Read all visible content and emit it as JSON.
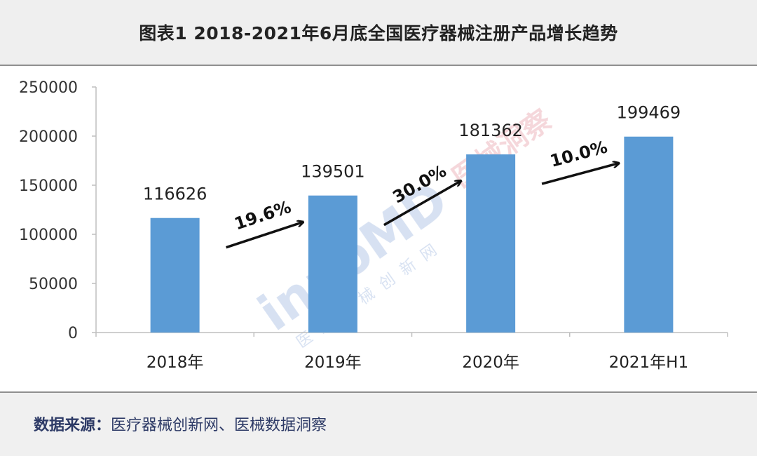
{
  "header": {
    "title": "图表1  2018-2021年6月底全国医疗器械注册产品增长趋势"
  },
  "chart_data": {
    "type": "bar",
    "categories": [
      "2018年",
      "2019年",
      "2020年",
      "2021年H1"
    ],
    "values": [
      116626,
      139501,
      181362,
      199469
    ],
    "ylim": [
      0,
      250000
    ],
    "yticks": [
      0,
      50000,
      100000,
      150000,
      200000,
      250000
    ],
    "grid": false,
    "legend": "none",
    "bar_color": "#5b9bd5",
    "growth_annotations": [
      "19.6%",
      "30.0%",
      "10.0%"
    ]
  },
  "watermark": {
    "brand": "innoMD",
    "brand_subtitle": "医疗器械创新网",
    "cn_text": "医械洞察"
  },
  "footer": {
    "source_label": "数据来源：",
    "source_value": "医疗器械创新网、医械数据洞察"
  }
}
